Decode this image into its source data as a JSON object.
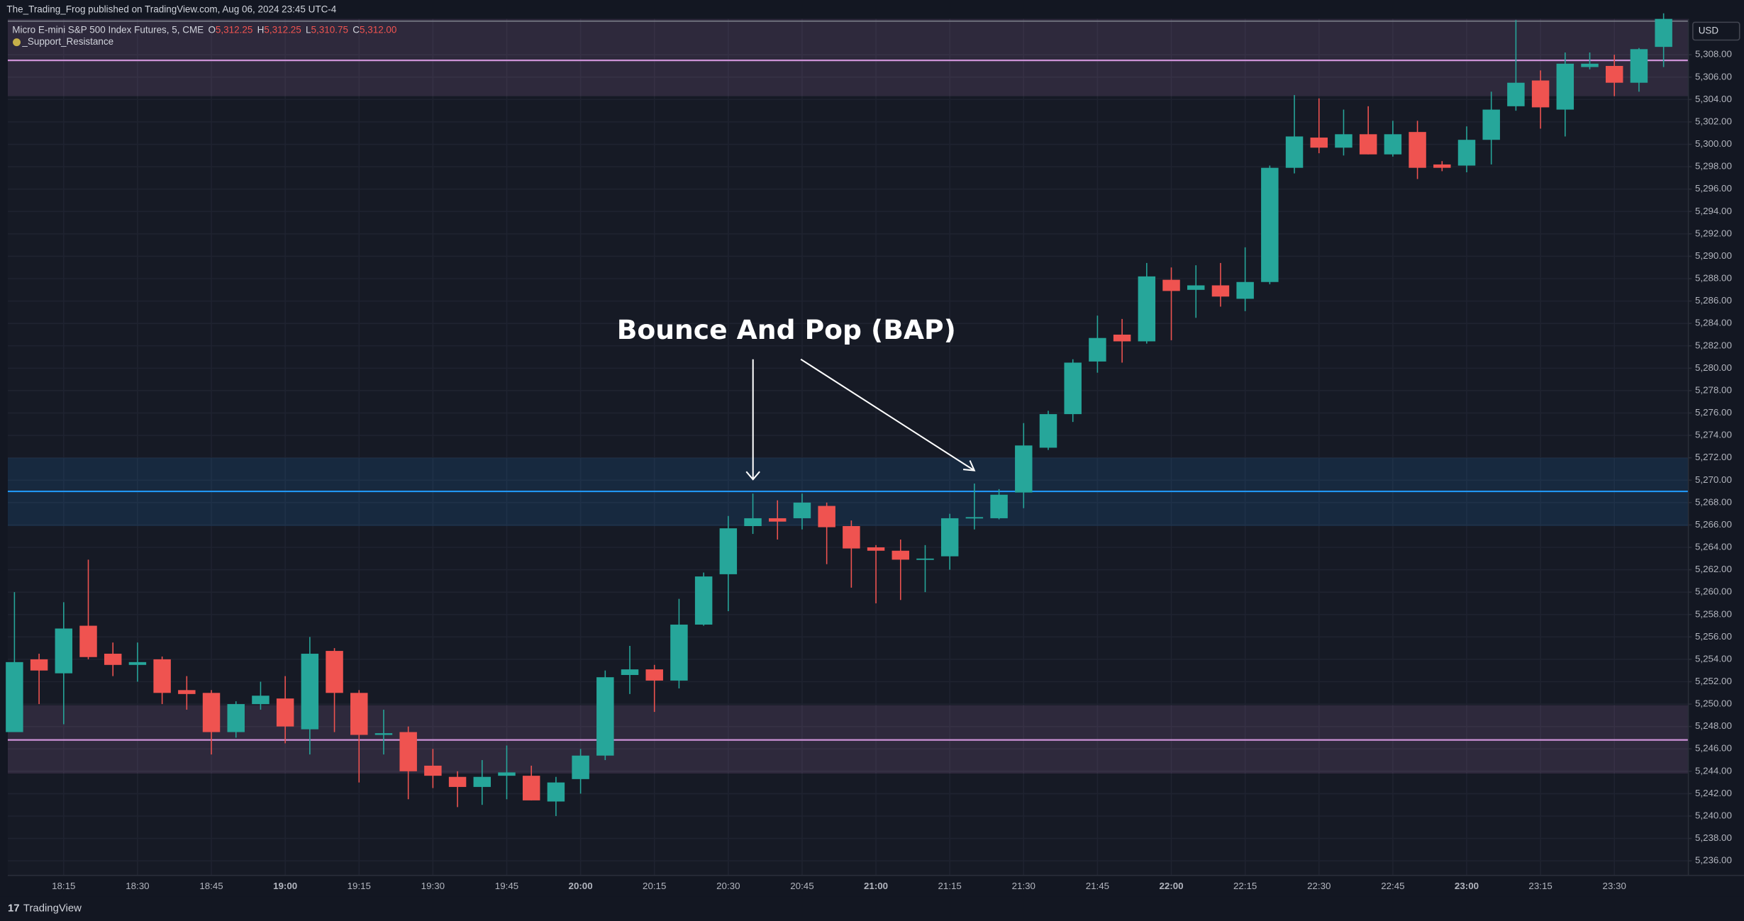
{
  "header": {
    "publisher": "The_Trading_Frog published on TradingView.com, Aug 06, 2024 23:45 UTC-4"
  },
  "footer": {
    "brand": "TradingView"
  },
  "chart_data": {
    "type": "candlestick",
    "symbol": "Micro E-mini S&P 500 Index Futures, 5, CME",
    "ohlc_legend": [
      {
        "key": "O",
        "value": 5312.25,
        "label": "5,312.25"
      },
      {
        "key": "H",
        "value": 5312.25,
        "label": "5,312.25"
      },
      {
        "key": "L",
        "value": 5310.75,
        "label": "5,310.75"
      },
      {
        "key": "C",
        "value": 5312.0,
        "label": "5,312.00"
      }
    ],
    "indicator": "_Support_Resistance",
    "currency": "USD",
    "annotation": "Bounce And Pop (BAP)",
    "up_color": "#26a69a",
    "down_color": "#ef5350",
    "grid": true,
    "categories": [
      null,
      null,
      "18:15",
      null,
      null,
      "18:30",
      null,
      null,
      "18:45",
      null,
      null,
      "19:00",
      null,
      null,
      "19:15",
      null,
      null,
      "19:30",
      null,
      null,
      "19:45",
      null,
      null,
      "20:00",
      null,
      null,
      "20:15",
      null,
      null,
      "20:30",
      null,
      null,
      "20:45",
      null,
      null,
      "21:00",
      null,
      null,
      "21:15",
      null,
      null,
      "21:30",
      null,
      null,
      "21:45",
      null,
      null,
      "22:00",
      null,
      null,
      "22:15",
      null,
      null,
      "22:30",
      null,
      null,
      "22:45",
      null,
      null,
      "23:00",
      null,
      null,
      "23:15",
      null,
      null,
      "23:30",
      null,
      null
    ],
    "open": [
      5247.5,
      5254,
      5252.75,
      5257,
      5254.5,
      5253.5,
      5254,
      5251.25,
      5251,
      5247.5,
      5250,
      5250.5,
      5247.75,
      5254.75,
      5251,
      5247.25,
      5247.5,
      5244.5,
      5243.5,
      5242.6,
      5243.6,
      5243.6,
      5241.3,
      5243.3,
      5245.4,
      5252.6,
      5253.1,
      5252.1,
      5257.1,
      5261.6,
      5265.9,
      5266.6,
      5266.6,
      5267.7,
      5265.9,
      5264,
      5263.7,
      5262.9,
      5263.2,
      5266.6,
      5266.6,
      5268.9,
      5272.9,
      5275.9,
      5280.6,
      5283,
      5282.4,
      5287.9,
      5287,
      5287.4,
      5286.2,
      5287.7,
      5297.9,
      5300.6,
      5299.7,
      5300.9,
      5299.1,
      5301.1,
      5298.2,
      5298.1,
      5300.4,
      5303.4,
      5305.7,
      5303.1,
      5306.9,
      5307,
      5305.5,
      5308.7
    ],
    "high": [
      5260,
      5254.5,
      5259.1,
      5262.9,
      5255.5,
      5255.5,
      5254.25,
      5252.5,
      5251.25,
      5250.25,
      5252,
      5252.5,
      5256,
      5255,
      5251.25,
      5249.5,
      5248,
      5246,
      5244,
      5245,
      5246.3,
      5244.5,
      5243.5,
      5246,
      5253,
      5255.2,
      5253.5,
      5259.4,
      5261.75,
      5266.8,
      5268.8,
      5268.2,
      5268.8,
      5268,
      5266.4,
      5264.2,
      5264.7,
      5264.2,
      5267,
      5269.7,
      5269.2,
      5275.1,
      5276.2,
      5280.8,
      5284.7,
      5284.4,
      5289.4,
      5289,
      5289.2,
      5289.4,
      5290.8,
      5298.1,
      5304.4,
      5304.1,
      5303.1,
      5303.4,
      5302.1,
      5302.1,
      5298.5,
      5301.6,
      5304.7,
      5311.1,
      5306.6,
      5308.2,
      5308.2,
      5308,
      5308.6,
      5311.7
    ],
    "low": [
      5247.5,
      5250,
      5248.2,
      5254,
      5252.5,
      5252,
      5250,
      5249.5,
      5245.5,
      5247,
      5249.5,
      5246.5,
      5245.5,
      5247.5,
      5243,
      5245.5,
      5241.5,
      5242.5,
      5240.8,
      5241,
      5241.5,
      5241.4,
      5240,
      5242,
      5245,
      5250.9,
      5249.3,
      5251.4,
      5257,
      5258.3,
      5265.2,
      5264.7,
      5265.6,
      5262.5,
      5260.4,
      5259,
      5259.3,
      5260,
      5262,
      5265.6,
      5266.5,
      5267.5,
      5272.7,
      5275.2,
      5279.6,
      5280.5,
      5282.2,
      5282.5,
      5284.5,
      5285.5,
      5285.1,
      5287.5,
      5297.4,
      5299.2,
      5299,
      5299.1,
      5298.9,
      5296.9,
      5297.6,
      5297.5,
      5298.2,
      5303,
      5301.4,
      5300.7,
      5306.7,
      5304.3,
      5304.7,
      5306.9
    ],
    "close": [
      5253.75,
      5253,
      5256.75,
      5254.2,
      5253.5,
      5253.75,
      5251,
      5250.9,
      5247.5,
      5250,
      5250.75,
      5248,
      5254.5,
      5251,
      5247.25,
      5247.4,
      5244,
      5243.6,
      5242.6,
      5243.5,
      5243.9,
      5241.4,
      5243,
      5245.4,
      5252.4,
      5253.1,
      5252.1,
      5257.1,
      5261.4,
      5265.7,
      5266.6,
      5266.3,
      5268,
      5265.8,
      5263.9,
      5263.7,
      5262.9,
      5263,
      5266.6,
      5266.7,
      5268.7,
      5273.1,
      5275.9,
      5280.5,
      5282.7,
      5282.4,
      5288.2,
      5286.9,
      5287.4,
      5286.4,
      5287.7,
      5297.9,
      5300.7,
      5299.7,
      5300.9,
      5299.1,
      5300.9,
      5297.9,
      5297.9,
      5300.4,
      5303.1,
      5305.5,
      5303.3,
      5307.2,
      5307.2,
      5305.5,
      5308.5,
      5311.2
    ],
    "zones": [
      {
        "low": 5304.3,
        "high": 5311.2,
        "level": 5307.5,
        "color": "#ce93d8"
      },
      {
        "low": 5265.9,
        "high": 5272.0,
        "level": 5269.0,
        "color": "#2196f3"
      },
      {
        "low": 5243.8,
        "high": 5249.9,
        "level": 5246.8,
        "color": "#ce93d8"
      }
    ],
    "ylim": [
      5234.7,
      5311.2
    ],
    "yticks": [
      {
        "value": 5236,
        "label": "5,236.00"
      },
      {
        "value": 5238,
        "label": "5,238.00"
      },
      {
        "value": 5240,
        "label": "5,240.00"
      },
      {
        "value": 5242,
        "label": "5,242.00"
      },
      {
        "value": 5244,
        "label": "5,244.00"
      },
      {
        "value": 5246,
        "label": "5,246.00"
      },
      {
        "value": 5248,
        "label": "5,248.00"
      },
      {
        "value": 5250,
        "label": "5,250.00"
      },
      {
        "value": 5252,
        "label": "5,252.00"
      },
      {
        "value": 5254,
        "label": "5,254.00"
      },
      {
        "value": 5256,
        "label": "5,256.00"
      },
      {
        "value": 5258,
        "label": "5,258.00"
      },
      {
        "value": 5260,
        "label": "5,260.00"
      },
      {
        "value": 5262,
        "label": "5,262.00"
      },
      {
        "value": 5264,
        "label": "5,264.00"
      },
      {
        "value": 5266,
        "label": "5,266.00"
      },
      {
        "value": 5268,
        "label": "5,268.00"
      },
      {
        "value": 5270,
        "label": "5,270.00"
      },
      {
        "value": 5272,
        "label": "5,272.00"
      },
      {
        "value": 5274,
        "label": "5,274.00"
      },
      {
        "value": 5276,
        "label": "5,276.00"
      },
      {
        "value": 5278,
        "label": "5,278.00"
      },
      {
        "value": 5280,
        "label": "5,280.00"
      },
      {
        "value": 5282,
        "label": "5,282.00"
      },
      {
        "value": 5284,
        "label": "5,284.00"
      },
      {
        "value": 5286,
        "label": "5,286.00"
      },
      {
        "value": 5288,
        "label": "5,288.00"
      },
      {
        "value": 5290,
        "label": "5,290.00"
      },
      {
        "value": 5292,
        "label": "5,292.00"
      },
      {
        "value": 5294,
        "label": "5,294.00"
      },
      {
        "value": 5296,
        "label": "5,296.00"
      },
      {
        "value": 5298,
        "label": "5,298.00"
      },
      {
        "value": 5300,
        "label": "5,300.00"
      },
      {
        "value": 5302,
        "label": "5,302.00"
      },
      {
        "value": 5304,
        "label": "5,304.00"
      },
      {
        "value": 5306,
        "label": "5,306.00"
      },
      {
        "value": 5308,
        "label": "5,308.00"
      }
    ]
  }
}
